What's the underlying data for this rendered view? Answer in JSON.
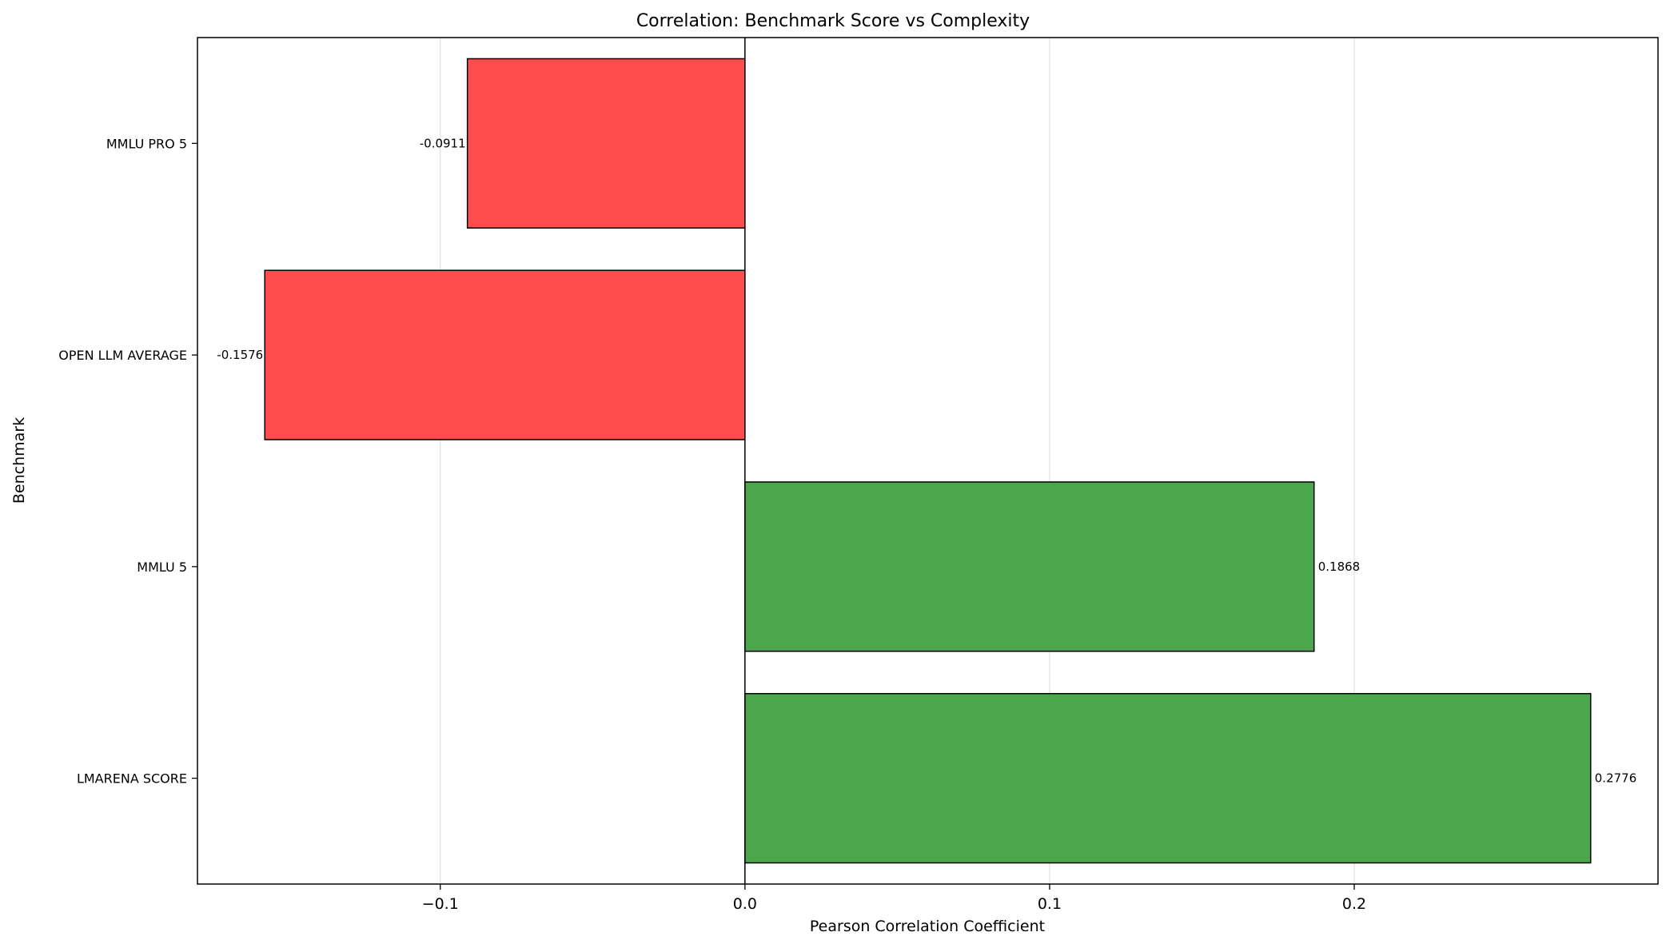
{
  "chart_data": {
    "type": "bar",
    "orientation": "horizontal",
    "title": "Correlation: Benchmark Score vs Complexity",
    "xlabel": "Pearson Correlation Coefficient",
    "ylabel": "Benchmark",
    "categories": [
      "MMLU PRO 5",
      "OPEN LLM AVERAGE",
      "MMLU 5",
      "LMARENA SCORE"
    ],
    "values": [
      -0.0911,
      -0.1576,
      0.1868,
      0.2776
    ],
    "value_labels": [
      "-0.0911",
      "-0.1576",
      "0.1868",
      "0.2776"
    ],
    "xlim": [
      -0.1797,
      0.2997
    ],
    "xticks": [
      -0.1,
      0.0,
      0.1,
      0.2
    ],
    "xtick_labels": [
      "−0.1",
      "0.0",
      "0.1",
      "0.2"
    ],
    "grid": "vertical",
    "zero_line": true,
    "colors": {
      "positive": "#4ca64c",
      "negative": "#ff4d4d",
      "edge": "#000000"
    }
  }
}
